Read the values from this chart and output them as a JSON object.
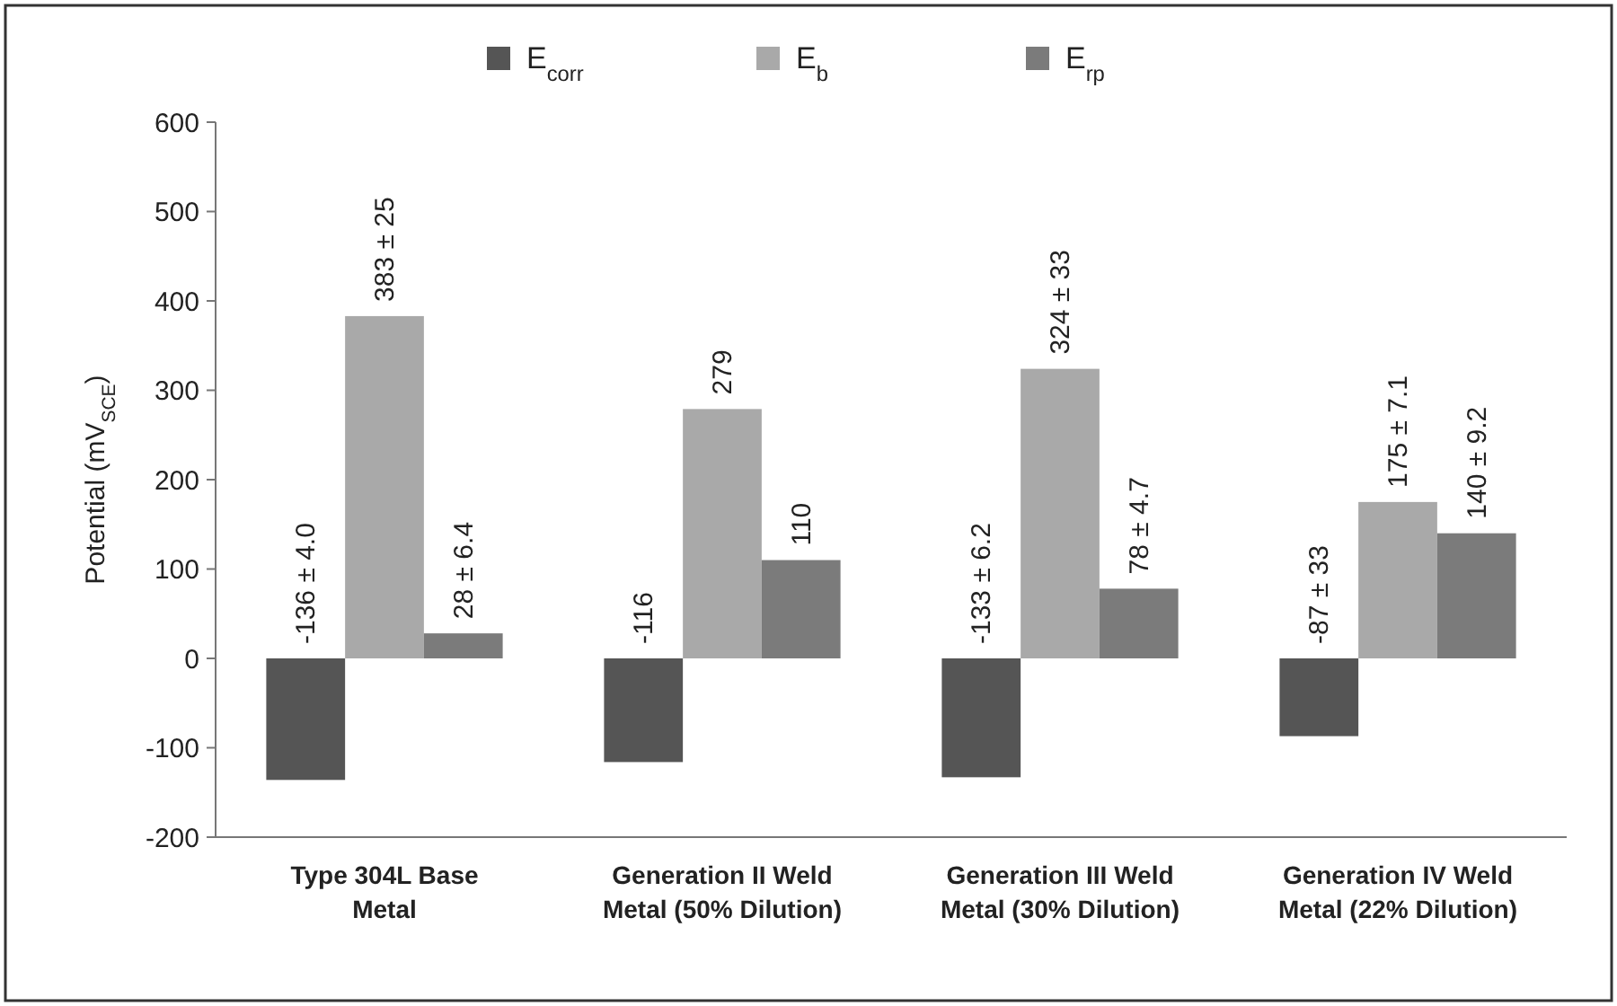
{
  "chart_data": {
    "type": "bar",
    "ylabel": "Potential (mV$_{SCE}$)",
    "categories": [
      "Type 304L Base\nMetal",
      "Generation II Weld\nMetal (50% Dilution)",
      "Generation III Weld\nMetal (30% Dilution)",
      "Generation IV Weld\nMetal (22% Dilution)"
    ],
    "series": [
      {
        "name": "E$_{corr}$",
        "color": "#555555",
        "values": [
          -136,
          -116,
          -133,
          -87
        ],
        "value_labels": [
          "-136 ± 4.0",
          "-116",
          "-133 ± 6.2",
          "-87 ± 33"
        ]
      },
      {
        "name": "E$_{b}$",
        "color": "#a9a9a9",
        "values": [
          383,
          279,
          324,
          175
        ],
        "value_labels": [
          "383 ± 25",
          "279",
          "324 ± 33",
          "175 ± 7.1"
        ]
      },
      {
        "name": "E$_{rp}$",
        "color": "#7b7b7b",
        "values": [
          28,
          110,
          78,
          140
        ],
        "value_labels": [
          "28 ± 6.4",
          "110",
          "78 ± 4.7",
          "140 ± 9.2"
        ]
      }
    ],
    "ylim": [
      -200,
      600
    ],
    "yticks": [
      -200,
      -100,
      0,
      100,
      200,
      300,
      400,
      500,
      600
    ],
    "grid": false,
    "legend": "top"
  }
}
